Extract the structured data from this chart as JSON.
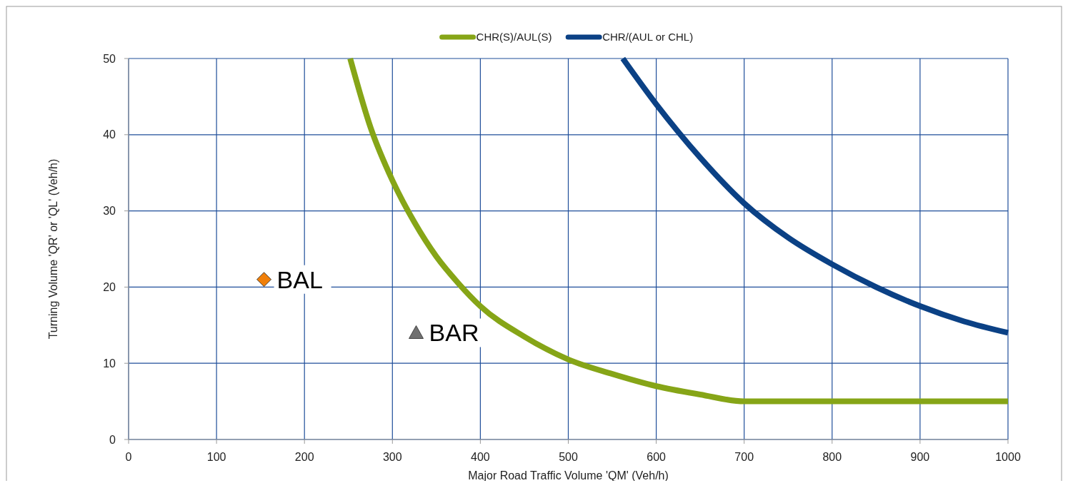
{
  "chart_data": {
    "type": "line",
    "xlabel": "Major Road Traffic Volume 'QM' (Veh/h)",
    "ylabel": "Turning Volume 'QR' or 'QL' (Veh/h)",
    "xlim": [
      0,
      1000
    ],
    "ylim": [
      0,
      50
    ],
    "xticks": [
      0,
      100,
      200,
      300,
      400,
      500,
      600,
      700,
      800,
      900,
      1000
    ],
    "yticks": [
      0,
      10,
      20,
      30,
      40,
      50
    ],
    "grid": true,
    "legend": "top",
    "series": [
      {
        "name": "CHR(S)/AUL(S)",
        "color": "#86a517",
        "x": [
          252,
          275,
          300,
          325,
          350,
          375,
          400,
          450,
          500,
          550,
          600,
          650,
          700,
          800,
          900,
          1000
        ],
        "values": [
          50,
          41,
          34,
          28.5,
          24,
          20.5,
          17.5,
          13.5,
          10.5,
          8.6,
          7,
          5.9,
          5,
          5,
          5,
          5
        ]
      },
      {
        "name": "CHR/(AUL or CHL)",
        "color": "#0b4185",
        "x": [
          562,
          600,
          650,
          700,
          750,
          800,
          850,
          900,
          950,
          1000
        ],
        "values": [
          50,
          44,
          37,
          31,
          26.5,
          23,
          20,
          17.5,
          15.5,
          14
        ]
      },
      {
        "name": "BAL",
        "color": "#f07f09",
        "type": "scatter",
        "marker": "diamond",
        "x": [
          154
        ],
        "values": [
          21
        ]
      },
      {
        "name": "BAR",
        "color": "#707070",
        "type": "scatter",
        "marker": "triangle",
        "x": [
          327
        ],
        "values": [
          14
        ]
      }
    ]
  }
}
